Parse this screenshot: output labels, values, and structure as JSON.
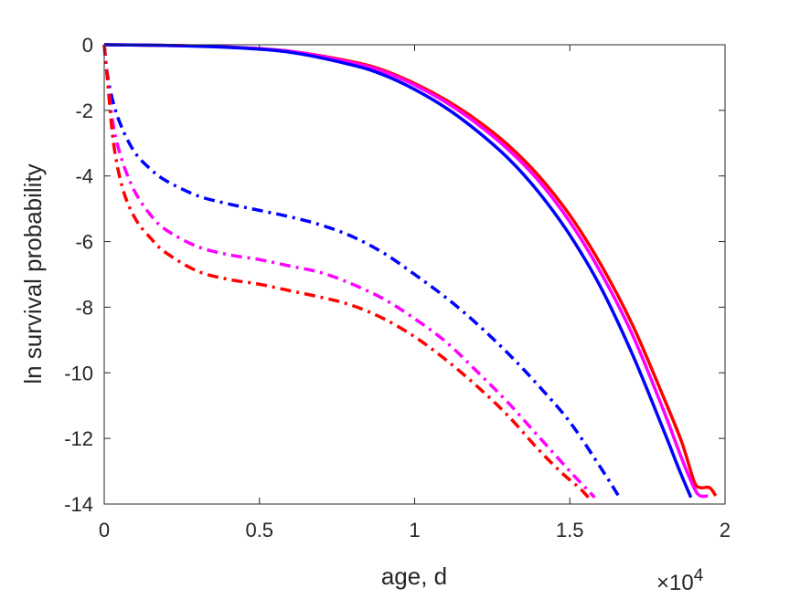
{
  "chart_data": {
    "type": "line",
    "title": "",
    "xlabel": "age, d",
    "ylabel": "ln survival probability",
    "x_exponent_label": "×10",
    "x_exponent_power": "4",
    "xlim": [
      0,
      20000
    ],
    "ylim": [
      -14,
      0
    ],
    "x_ticks": [
      0,
      5000,
      10000,
      15000,
      20000
    ],
    "x_tick_labels": [
      "0",
      "0.5",
      "1",
      "1.5",
      "2"
    ],
    "y_ticks": [
      0,
      -2,
      -4,
      -6,
      -8,
      -10,
      -12,
      -14
    ],
    "y_tick_labels": [
      "0",
      "-2",
      "-4",
      "-6",
      "-8",
      "-10",
      "-12",
      "-14"
    ],
    "grid": false,
    "box": true,
    "series": [
      {
        "color": "#ff0000",
        "style": "solid",
        "x": [
          0,
          2000,
          4000,
          6000,
          8000,
          9000,
          10000,
          11000,
          12000,
          13000,
          14000,
          15000,
          16000,
          17000,
          18000,
          18600,
          19000,
          19200,
          19500,
          19700
        ],
        "y": [
          0,
          -0.02,
          -0.07,
          -0.2,
          -0.52,
          -0.78,
          -1.18,
          -1.68,
          -2.3,
          -3.05,
          -4.0,
          -5.2,
          -6.7,
          -8.5,
          -10.7,
          -12.1,
          -13.3,
          -13.5,
          -13.5,
          -13.75
        ]
      },
      {
        "color": "#ff00ff",
        "style": "solid",
        "x": [
          0,
          2000,
          4000,
          6000,
          8000,
          9000,
          10000,
          11000,
          12000,
          13000,
          14000,
          15000,
          16000,
          17000,
          18000,
          18600,
          19000,
          19200,
          19450
        ],
        "y": [
          0,
          -0.02,
          -0.07,
          -0.2,
          -0.55,
          -0.82,
          -1.23,
          -1.75,
          -2.4,
          -3.18,
          -4.15,
          -5.4,
          -6.95,
          -8.8,
          -11.1,
          -12.6,
          -13.5,
          -13.75,
          -13.75
        ]
      },
      {
        "color": "#0000ff",
        "style": "solid",
        "x": [
          0,
          2000,
          4000,
          6000,
          8000,
          9000,
          10000,
          11000,
          12000,
          13000,
          14000,
          15000,
          16000,
          17000,
          18000,
          18500,
          18900
        ],
        "y": [
          0,
          -0.02,
          -0.08,
          -0.23,
          -0.62,
          -0.92,
          -1.36,
          -1.92,
          -2.62,
          -3.45,
          -4.5,
          -5.8,
          -7.4,
          -9.4,
          -11.7,
          -12.9,
          -13.8
        ]
      },
      {
        "color": "#0000ff",
        "style": "dashdot",
        "x": [
          0,
          100,
          300,
          600,
          1000,
          1500,
          2000,
          3000,
          4000,
          5000,
          6000,
          7000,
          8000,
          9000,
          10000,
          11000,
          12000,
          13000,
          14000,
          15000,
          16000,
          16600
        ],
        "y": [
          0,
          -0.9,
          -1.8,
          -2.6,
          -3.3,
          -3.8,
          -4.15,
          -4.6,
          -4.85,
          -5.05,
          -5.25,
          -5.5,
          -5.85,
          -6.35,
          -7.0,
          -7.7,
          -8.5,
          -9.4,
          -10.4,
          -11.5,
          -12.9,
          -13.8
        ]
      },
      {
        "color": "#ff00ff",
        "style": "dashdot",
        "x": [
          0,
          100,
          300,
          600,
          1000,
          1500,
          2000,
          3000,
          4000,
          5000,
          6000,
          7000,
          8000,
          9000,
          10000,
          11000,
          12000,
          13000,
          14000,
          15000,
          15500,
          15800
        ],
        "y": [
          0,
          -1.0,
          -2.5,
          -3.6,
          -4.5,
          -5.2,
          -5.65,
          -6.15,
          -6.4,
          -6.55,
          -6.75,
          -6.95,
          -7.3,
          -7.75,
          -8.35,
          -9.05,
          -9.95,
          -10.9,
          -11.95,
          -13.0,
          -13.5,
          -13.8
        ]
      },
      {
        "color": "#ff0000",
        "style": "dashdot",
        "x": [
          0,
          100,
          300,
          600,
          1000,
          1500,
          2000,
          3000,
          4000,
          5000,
          6000,
          7000,
          8000,
          9000,
          10000,
          11000,
          12000,
          13000,
          14000,
          14800,
          15300,
          15600
        ],
        "y": [
          0,
          -1.0,
          -3.0,
          -4.4,
          -5.3,
          -5.9,
          -6.35,
          -6.9,
          -7.15,
          -7.3,
          -7.5,
          -7.7,
          -7.95,
          -8.35,
          -8.9,
          -9.6,
          -10.4,
          -11.3,
          -12.35,
          -13.1,
          -13.5,
          -13.8
        ]
      }
    ]
  }
}
